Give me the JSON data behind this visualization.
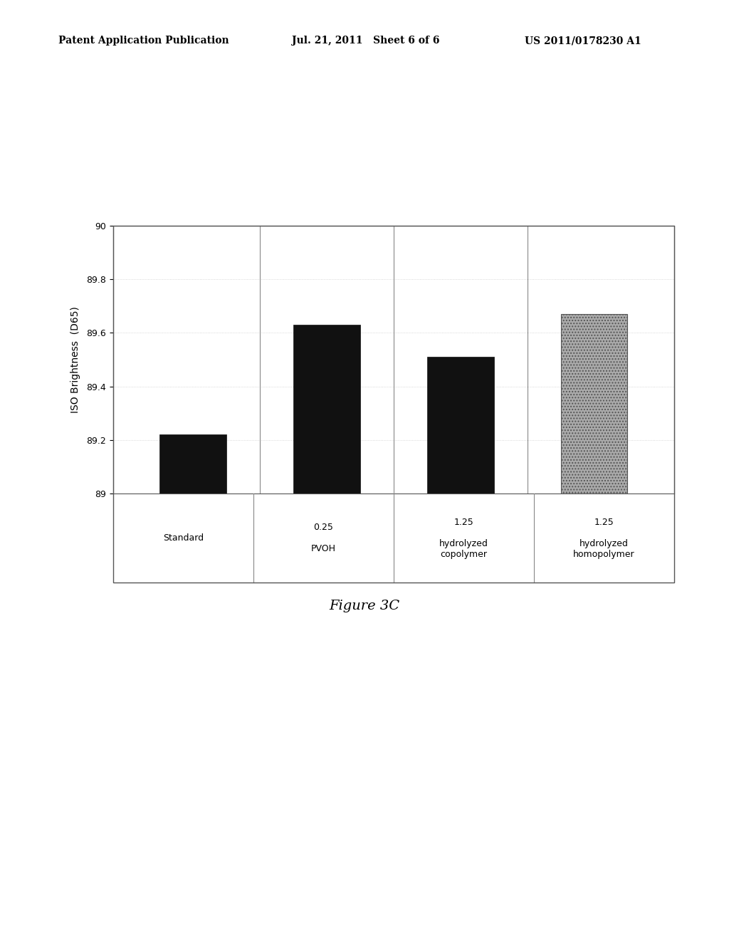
{
  "categories": [
    "Standard",
    "0.25\nPVOH",
    "1.25\nhydrolyzed\ncopolymer",
    "1.25\nhydrolyzed\nhomopolymer"
  ],
  "values": [
    89.22,
    89.63,
    89.51,
    89.67
  ],
  "bar_colors": [
    "#111111",
    "#111111",
    "#111111",
    "#888888"
  ],
  "ylabel": "ISO Brightness  (D65)",
  "ylim": [
    89.0,
    90.0
  ],
  "yticks": [
    89.0,
    89.2,
    89.4,
    89.6,
    89.8,
    90.0
  ],
  "figure_caption": "Figure 3C",
  "header_left": "Patent Application Publication",
  "header_mid": "Jul. 21, 2011   Sheet 6 of 6",
  "header_right": "US 2011/0178230 A1",
  "background_color": "#ffffff",
  "plot_bg_color": "#ffffff",
  "axis_fontsize": 10,
  "tick_fontsize": 9,
  "caption_fontsize": 14,
  "header_fontsize": 10
}
